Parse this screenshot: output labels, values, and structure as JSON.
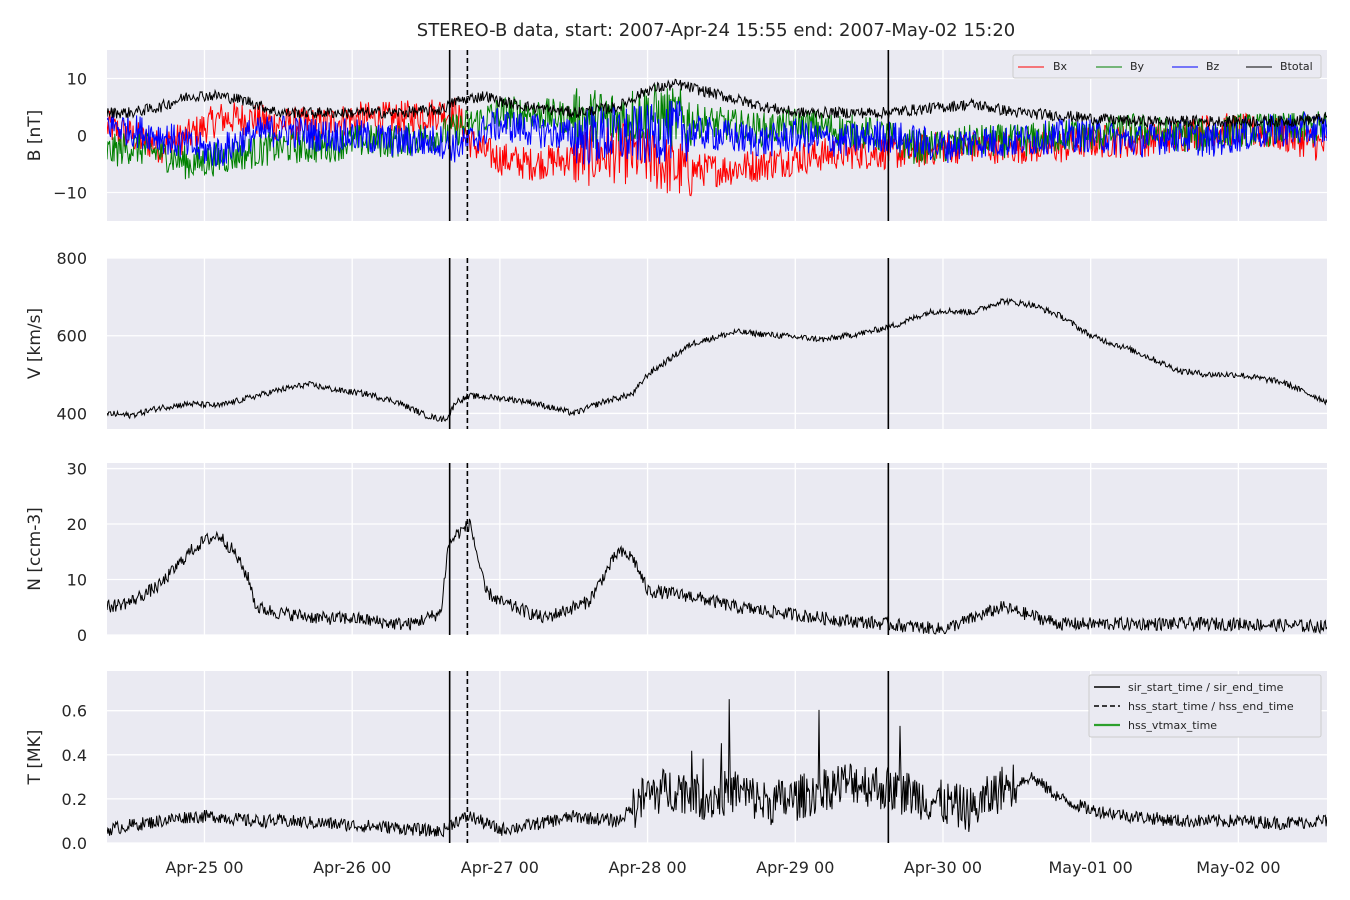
{
  "figure": {
    "title": "STEREO-B data, start: 2007-Apr-24 15:55  end: 2007-May-02 15:20"
  },
  "chart_data": [
    {
      "type": "line",
      "panel": "B",
      "ylabel": "B [nT]",
      "ylim": [
        -15,
        15
      ],
      "yticks": [
        -10,
        0,
        10
      ],
      "grid": true,
      "legend": {
        "placement": "top-right",
        "columns": 4
      },
      "series": [
        {
          "name": "Bx",
          "color": "#ff0000",
          "x": [
            -0.66,
            -0.5,
            -0.3,
            -0.1,
            0.1,
            0.3,
            0.5,
            0.8,
            1.0,
            1.3,
            1.6,
            1.7,
            1.8,
            1.9,
            2.0,
            2.2,
            2.5,
            2.8,
            3.0,
            3.2,
            3.5,
            3.8,
            4.0,
            4.3,
            4.6,
            4.8,
            5.0,
            5.2,
            5.5,
            5.8,
            6.0,
            6.3,
            6.6,
            6.8,
            7.0,
            7.3,
            7.6
          ],
          "values": [
            1.5,
            0,
            -2,
            0,
            3,
            3,
            2,
            2,
            3,
            3,
            4,
            4,
            -1,
            -3,
            -4,
            -5,
            -4,
            -3,
            -4,
            -6,
            -6,
            -5,
            -4,
            -3,
            -3,
            -3,
            -2,
            -2,
            -2,
            -2,
            -1,
            -1,
            0,
            1,
            1,
            0,
            -2
          ]
        },
        {
          "name": "By",
          "color": "#008000",
          "x": [
            -0.66,
            -0.5,
            -0.3,
            -0.1,
            0.1,
            0.3,
            0.5,
            0.8,
            1.0,
            1.3,
            1.6,
            1.7,
            1.8,
            1.9,
            2.0,
            2.2,
            2.5,
            2.8,
            3.0,
            3.2,
            3.5,
            3.8,
            4.0,
            4.3,
            4.6,
            4.8,
            5.0,
            5.2,
            5.5,
            5.8,
            6.0,
            6.3,
            6.6,
            6.8,
            7.0,
            7.3,
            7.6
          ],
          "values": [
            -3,
            -2,
            -3,
            -5,
            -4,
            -3,
            -2,
            -2,
            -1,
            -1,
            0,
            1,
            2,
            3,
            4,
            4,
            3,
            3,
            4,
            3,
            2,
            1,
            2,
            1,
            0,
            -2,
            -2,
            -1,
            -1,
            0,
            0,
            1,
            0,
            0,
            1,
            1,
            1.5
          ]
        },
        {
          "name": "Bz",
          "color": "#0000ff",
          "x": [
            -0.66,
            -0.5,
            -0.3,
            -0.1,
            0.1,
            0.3,
            0.5,
            0.8,
            1.0,
            1.3,
            1.6,
            1.7,
            1.8,
            1.9,
            2.0,
            2.2,
            2.5,
            2.8,
            3.0,
            3.2,
            3.5,
            3.8,
            4.0,
            4.3,
            4.6,
            4.8,
            5.0,
            5.2,
            5.5,
            5.8,
            6.0,
            6.3,
            6.6,
            6.8,
            7.0,
            7.3,
            7.6
          ],
          "values": [
            2,
            1,
            0,
            -2,
            -3,
            0,
            1,
            0,
            0,
            -1,
            -1,
            -2,
            -1,
            1,
            2,
            1,
            0,
            0,
            0,
            1,
            0,
            -1,
            0,
            -1,
            0,
            -1,
            -2,
            -1,
            -1,
            0,
            0,
            -1,
            0,
            -1,
            0,
            1,
            1
          ]
        },
        {
          "name": "Btotal",
          "color": "#000000",
          "x": [
            -0.66,
            -0.5,
            -0.3,
            -0.1,
            0.1,
            0.3,
            0.5,
            0.8,
            1.0,
            1.3,
            1.6,
            1.7,
            1.8,
            1.9,
            2.0,
            2.2,
            2.5,
            2.8,
            3.0,
            3.2,
            3.5,
            3.8,
            4.0,
            4.3,
            4.6,
            4.8,
            5.0,
            5.2,
            5.5,
            5.8,
            6.0,
            6.3,
            6.6,
            6.8,
            7.0,
            7.3,
            7.6
          ],
          "values": [
            4,
            4,
            5,
            7,
            7,
            6,
            4,
            4,
            4,
            4,
            4.5,
            6,
            6.5,
            7,
            6,
            5,
            4,
            5,
            8,
            9,
            7,
            5,
            4,
            4,
            4,
            4.5,
            5,
            5.5,
            4,
            3.5,
            3,
            2.5,
            2.5,
            2.5,
            2.5,
            2.5,
            3
          ]
        }
      ]
    },
    {
      "type": "line",
      "panel": "V",
      "ylabel": "V [km/s]",
      "ylim": [
        360,
        800
      ],
      "yticks": [
        400,
        600,
        800
      ],
      "grid": true,
      "series": [
        {
          "color": "#000000",
          "x": [
            -0.66,
            -0.5,
            -0.3,
            -0.1,
            0.1,
            0.3,
            0.5,
            0.7,
            0.9,
            1.1,
            1.3,
            1.5,
            1.6,
            1.65,
            1.7,
            1.8,
            2.0,
            2.2,
            2.4,
            2.5,
            2.7,
            2.9,
            3.0,
            3.3,
            3.6,
            3.9,
            4.2,
            4.5,
            4.7,
            4.9,
            5.0,
            5.2,
            5.4,
            5.6,
            5.8,
            6.0,
            6.3,
            6.6,
            6.8,
            7.0,
            7.3,
            7.6
          ],
          "values": [
            400,
            395,
            415,
            425,
            420,
            440,
            460,
            475,
            460,
            450,
            430,
            395,
            385,
            390,
            430,
            445,
            440,
            430,
            410,
            400,
            430,
            450,
            500,
            580,
            610,
            600,
            590,
            610,
            630,
            660,
            665,
            660,
            690,
            680,
            650,
            600,
            560,
            510,
            500,
            500,
            480,
            430
          ]
        }
      ]
    },
    {
      "type": "line",
      "panel": "N",
      "ylabel": "N [ccm-3]",
      "ylim": [
        0,
        31
      ],
      "yticks": [
        0,
        10,
        20,
        30
      ],
      "grid": true,
      "series": [
        {
          "color": "#000000",
          "x": [
            -0.66,
            -0.5,
            -0.3,
            -0.1,
            0.0,
            0.1,
            0.2,
            0.3,
            0.35,
            0.5,
            0.8,
            1.0,
            1.3,
            1.4,
            1.6,
            1.65,
            1.7,
            1.8,
            1.9,
            2.0,
            2.3,
            2.6,
            2.8,
            2.9,
            3.0,
            3.3,
            3.6,
            3.9,
            4.2,
            4.6,
            5.0,
            5.2,
            5.4,
            5.8,
            6.2,
            6.6,
            7.0,
            7.6
          ],
          "values": [
            5,
            6,
            9,
            15,
            17,
            18,
            15,
            10,
            5,
            4,
            3,
            3,
            2,
            2,
            4,
            16,
            18,
            20,
            8,
            6,
            3,
            6,
            15,
            14,
            8,
            7,
            5,
            4,
            3,
            2,
            1,
            3,
            5,
            2,
            2,
            2,
            2,
            1.5
          ]
        }
      ]
    },
    {
      "type": "line",
      "panel": "T",
      "ylabel": "T [MK]",
      "ylim": [
        0,
        0.78
      ],
      "yticks": [
        0.0,
        0.2,
        0.4,
        0.6
      ],
      "grid": true,
      "legend": {
        "placement": "top-right",
        "entries": [
          {
            "name": "sir_start_time / sir_end_time",
            "style": "solid",
            "color": "#000000"
          },
          {
            "name": "hss_start_time / hss_end_time",
            "style": "dashed",
            "color": "#000000"
          },
          {
            "name": "hss_vtmax_time",
            "style": "solid",
            "color": "#2ca02c"
          }
        ]
      },
      "series": [
        {
          "color": "#000000",
          "x": [
            -0.66,
            -0.5,
            -0.3,
            -0.1,
            0.1,
            0.3,
            0.5,
            0.8,
            1.0,
            1.3,
            1.6,
            1.7,
            1.8,
            2.0,
            2.2,
            2.5,
            2.8,
            3.0,
            3.2,
            3.4,
            3.6,
            3.8,
            4.0,
            4.2,
            4.4,
            4.6,
            4.8,
            5.0,
            5.2,
            5.4,
            5.6,
            5.8,
            6.0,
            6.3,
            6.6,
            7.0,
            7.3,
            7.6
          ],
          "values": [
            0.06,
            0.08,
            0.1,
            0.12,
            0.12,
            0.1,
            0.1,
            0.09,
            0.08,
            0.07,
            0.05,
            0.1,
            0.12,
            0.06,
            0.08,
            0.12,
            0.1,
            0.22,
            0.25,
            0.2,
            0.24,
            0.18,
            0.2,
            0.25,
            0.28,
            0.25,
            0.22,
            0.18,
            0.15,
            0.25,
            0.3,
            0.2,
            0.15,
            0.12,
            0.1,
            0.1,
            0.09,
            0.1
          ]
        }
      ]
    }
  ],
  "x_axis": {
    "ticks": [
      "Apr-25 00",
      "Apr-26 00",
      "Apr-27 00",
      "Apr-28 00",
      "Apr-29 00",
      "Apr-30 00",
      "May-01 00",
      "May-02 00"
    ]
  },
  "event_lines": {
    "sir_start_day": 1.66,
    "sir_end_day": 4.63,
    "hss_start_day": 1.78
  },
  "legend_B": {
    "labels": [
      "Bx",
      "By",
      "Bz",
      "Btotal"
    ]
  },
  "legend_T": {
    "labels": [
      "sir_start_time / sir_end_time",
      "hss_start_time / hss_end_time",
      "hss_vtmax_time"
    ]
  }
}
